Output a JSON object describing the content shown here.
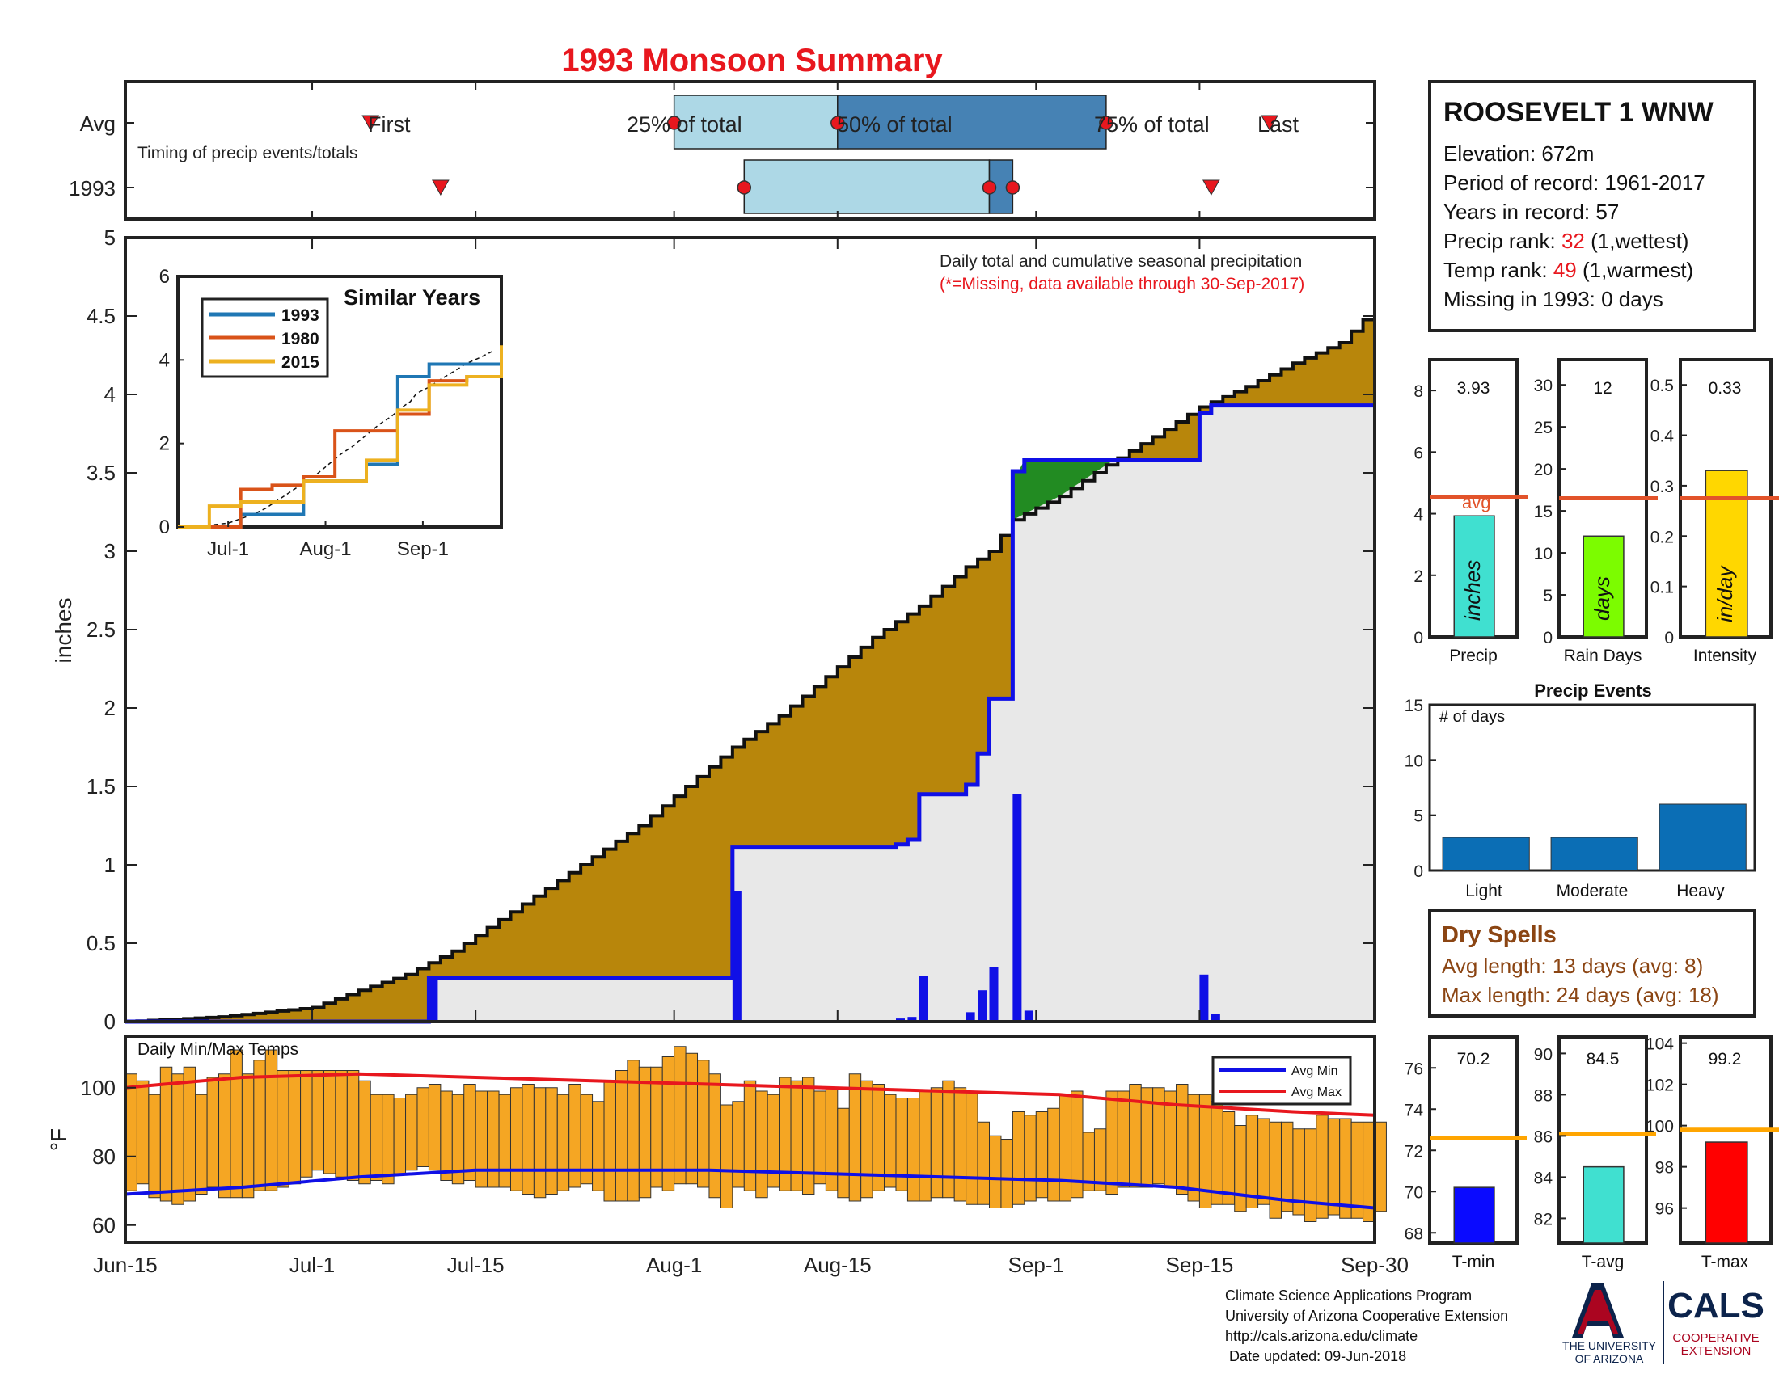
{
  "title": "1993 Monsoon Summary",
  "accent_colors": {
    "title": "#e8171e",
    "cum_fill": "#b8860b",
    "obs_line": "#1010e6",
    "wet_fill": "#228b22",
    "temp_bar": "#f5a623",
    "avg_line": "#e2532a"
  },
  "timing": {
    "row_labels": [
      "Avg",
      "1993"
    ],
    "caption": "Timing of precip events/totals",
    "labels": {
      "first": "First",
      "p25": "25% of total",
      "p50": "50% of total",
      "p75": "75% of total",
      "last": "Last"
    }
  },
  "station": {
    "name": "ROOSEVELT 1 WNW",
    "lines": [
      {
        "text": "Elevation: 672m"
      },
      {
        "text": "Period of record: 1961-2017"
      },
      {
        "text": "Years in record: 57"
      },
      {
        "pre": "Precip rank: ",
        "red": "32",
        "post": " (1,wettest)"
      },
      {
        "pre": "Temp rank: ",
        "red": "49",
        "post": " (1,warmest)"
      },
      {
        "text": "Missing in 1993: 0 days"
      }
    ]
  },
  "main": {
    "ylabel": "inches",
    "note1": "Daily total and cumulative seasonal precipitation",
    "note2": "(*=Missing, data available through 30-Sep-2017)",
    "xticklabels": [
      "Jun-15",
      "Jul-1",
      "Jul-15",
      "Aug-1",
      "Aug-15",
      "Sep-1",
      "Sep-15",
      "Sep-30"
    ]
  },
  "inset": {
    "title": "Similar Years",
    "legend": [
      "1993",
      "1980",
      "2015"
    ],
    "xticklabels": [
      "Jul-1",
      "Aug-1",
      "Sep-1"
    ]
  },
  "temps": {
    "title": "Daily Min/Max Temps",
    "ylabel": "°F",
    "legend": [
      "Avg Min",
      "Avg Max"
    ]
  },
  "mini_bars": [
    {
      "label": "Precip",
      "value_text": "3.93",
      "unit": "inches",
      "avg_label": "avg"
    },
    {
      "label": "Rain Days",
      "value_text": "12",
      "unit": "days"
    },
    {
      "label": "Intensity",
      "value_text": "0.33",
      "unit": "in/day"
    }
  ],
  "events": {
    "title": "Precip Events",
    "ylabel": "# of days"
  },
  "dry_spells": {
    "title": "Dry Spells",
    "avg": "Avg length: 13 days (avg: 8)",
    "max": "Max length: 24 days (avg: 18)"
  },
  "temp_bars": [
    {
      "label": "T-min",
      "value_text": "70.2"
    },
    {
      "label": "T-avg",
      "value_text": "84.5"
    },
    {
      "label": "T-max",
      "value_text": "99.2"
    }
  ],
  "footer": {
    "lines": [
      "Climate Science Applications Program",
      "University of Arizona Cooperative Extension",
      "http://cals.arizona.edu/climate",
      " Date updated: 09-Jun-2018"
    ],
    "logo_ua_1": "THE UNIVERSITY",
    "logo_ua_2": "OF ARIZONA",
    "logo_cals": "CALS",
    "logo_coop_1": "COOPERATIVE",
    "logo_coop_2": "EXTENSION"
  },
  "chart_data": [
    {
      "id": "timing",
      "type": "bar",
      "x_unit": "day of season (0 = Jun-15)",
      "avg": {
        "first": 21,
        "p25": 47,
        "p50": 61,
        "p75": 84,
        "last": 98
      },
      "y1993": {
        "first": 27,
        "p25": 53,
        "p50": 74,
        "p75": 76,
        "last": 93
      }
    },
    {
      "id": "cumulative",
      "type": "area",
      "ylim": [
        0,
        5
      ],
      "xlim": [
        0,
        107
      ],
      "yticks": [
        0,
        0.5,
        1,
        1.5,
        2,
        2.5,
        3,
        3.5,
        4,
        4.5,
        5
      ],
      "xticks": [
        0,
        16,
        30,
        47,
        61,
        78,
        92,
        107
      ],
      "avg_cum": [
        [
          0,
          0.0
        ],
        [
          8,
          0.03
        ],
        [
          16,
          0.09
        ],
        [
          20,
          0.2
        ],
        [
          24,
          0.3
        ],
        [
          28,
          0.45
        ],
        [
          32,
          0.65
        ],
        [
          36,
          0.85
        ],
        [
          40,
          1.05
        ],
        [
          44,
          1.25
        ],
        [
          48,
          1.5
        ],
        [
          52,
          1.75
        ],
        [
          56,
          1.95
        ],
        [
          60,
          2.2
        ],
        [
          64,
          2.45
        ],
        [
          68,
          2.65
        ],
        [
          72,
          2.9
        ],
        [
          74,
          3.0
        ],
        [
          76,
          3.2
        ],
        [
          80,
          3.35
        ],
        [
          84,
          3.55
        ],
        [
          88,
          3.73
        ],
        [
          92,
          3.92
        ],
        [
          96,
          4.05
        ],
        [
          100,
          4.2
        ],
        [
          104,
          4.33
        ],
        [
          107,
          4.55
        ]
      ],
      "obs_cum": [
        [
          0,
          0.0
        ],
        [
          26,
          0.0
        ],
        [
          26,
          0.28
        ],
        [
          52,
          0.28
        ],
        [
          52,
          1.11
        ],
        [
          66,
          1.11
        ],
        [
          66,
          1.13
        ],
        [
          67,
          1.13
        ],
        [
          67,
          1.16
        ],
        [
          68,
          1.16
        ],
        [
          68,
          1.45
        ],
        [
          72,
          1.45
        ],
        [
          72,
          1.51
        ],
        [
          73,
          1.51
        ],
        [
          73,
          1.71
        ],
        [
          74,
          1.71
        ],
        [
          74,
          2.06
        ],
        [
          76,
          2.06
        ],
        [
          76,
          3.51
        ],
        [
          77,
          3.51
        ],
        [
          77,
          3.58
        ],
        [
          92,
          3.58
        ],
        [
          92,
          3.88
        ],
        [
          93,
          3.88
        ],
        [
          93,
          3.93
        ],
        [
          107,
          3.93
        ]
      ],
      "daily": [
        [
          26,
          0.28
        ],
        [
          52,
          0.83
        ],
        [
          66,
          0.02
        ],
        [
          67,
          0.03
        ],
        [
          68,
          0.29
        ],
        [
          72,
          0.06
        ],
        [
          73,
          0.2
        ],
        [
          74,
          0.35
        ],
        [
          76,
          1.45
        ],
        [
          77,
          0.07
        ],
        [
          92,
          0.3
        ],
        [
          93,
          0.05
        ]
      ]
    },
    {
      "id": "similar_years",
      "type": "line",
      "ylim": [
        0,
        6
      ],
      "yticks": [
        0,
        2,
        4,
        6
      ],
      "x": [
        0,
        10,
        20,
        30,
        40,
        50,
        60,
        70,
        80,
        92,
        103
      ],
      "series": [
        {
          "name": "1993",
          "values": [
            0,
            0,
            0.3,
            0.3,
            1.1,
            1.1,
            1.5,
            3.6,
            3.9,
            3.9,
            3.93
          ]
        },
        {
          "name": "1980",
          "values": [
            0,
            0,
            0.9,
            1.0,
            1.2,
            2.3,
            2.3,
            2.7,
            3.5,
            3.6,
            4.1
          ]
        },
        {
          "name": "2015",
          "values": [
            0,
            0.5,
            0.6,
            0.6,
            1.1,
            1.1,
            1.6,
            2.8,
            3.4,
            3.6,
            4.35
          ]
        }
      ]
    },
    {
      "id": "daily_temps",
      "type": "bar",
      "ylim": [
        55,
        115
      ],
      "yticks": [
        60,
        80,
        100
      ],
      "max_temps": [
        104,
        102,
        98,
        106,
        104,
        106,
        98,
        103,
        104,
        111,
        104,
        108,
        111,
        105,
        105,
        105,
        105,
        105,
        105,
        105,
        102,
        98,
        98,
        97,
        98,
        100,
        101,
        99,
        98,
        101,
        99,
        99,
        98,
        100,
        101,
        100,
        100,
        98,
        101,
        98,
        96,
        102,
        105,
        108,
        106,
        106,
        109,
        112,
        110,
        108,
        104,
        95,
        96,
        102,
        99,
        98,
        103,
        102,
        103,
        99,
        100,
        94,
        104,
        102,
        101,
        98,
        97,
        97,
        99,
        100,
        102,
        100,
        99,
        90,
        86,
        85,
        93,
        92,
        93,
        94,
        98,
        99,
        87,
        88,
        99,
        99,
        101,
        100,
        100,
        99,
        101,
        98,
        98,
        96,
        93,
        89,
        92,
        91,
        90,
        90,
        88,
        88,
        92,
        91,
        91,
        90,
        90,
        90
      ],
      "min_temps": [
        70,
        72,
        68,
        67,
        66,
        67,
        69,
        71,
        68,
        68,
        68,
        70,
        70,
        71,
        72,
        74,
        76,
        75,
        74,
        73,
        72,
        73,
        72,
        75,
        76,
        77,
        76,
        73,
        72,
        73,
        71,
        71,
        71,
        70,
        69,
        68,
        69,
        70,
        71,
        72,
        70,
        67,
        67,
        67,
        68,
        71,
        70,
        72,
        72,
        71,
        68,
        65,
        71,
        70,
        68,
        71,
        70,
        70,
        69,
        72,
        70,
        68,
        67,
        68,
        70,
        71,
        70,
        67,
        67,
        68,
        68,
        67,
        66,
        66,
        65,
        65,
        66,
        67,
        68,
        67,
        67,
        68,
        70,
        70,
        69,
        71,
        71,
        71,
        72,
        71,
        69,
        67,
        65,
        66,
        66,
        64,
        65,
        66,
        62,
        64,
        63,
        61,
        62,
        63,
        62,
        62,
        61,
        64
      ],
      "avg_max": [
        [
          0,
          100
        ],
        [
          10,
          103
        ],
        [
          20,
          104
        ],
        [
          30,
          103
        ],
        [
          40,
          102
        ],
        [
          50,
          101
        ],
        [
          60,
          100
        ],
        [
          70,
          99
        ],
        [
          80,
          98
        ],
        [
          90,
          95
        ],
        [
          100,
          93
        ],
        [
          107,
          92
        ]
      ],
      "avg_min": [
        [
          0,
          69
        ],
        [
          10,
          71
        ],
        [
          20,
          74
        ],
        [
          30,
          76
        ],
        [
          40,
          76
        ],
        [
          50,
          76
        ],
        [
          60,
          75
        ],
        [
          70,
          74
        ],
        [
          80,
          73
        ],
        [
          90,
          71
        ],
        [
          100,
          67
        ],
        [
          107,
          65
        ]
      ]
    },
    {
      "id": "precip_bar",
      "type": "bar",
      "categories": [
        "Precip"
      ],
      "values": [
        3.93
      ],
      "avg": 4.55,
      "ylim": [
        0,
        9
      ],
      "yticks": [
        0,
        2,
        4,
        6,
        8
      ]
    },
    {
      "id": "raindays_bar",
      "type": "bar",
      "categories": [
        "Rain Days"
      ],
      "values": [
        12
      ],
      "avg": 16.5,
      "ylim": [
        0,
        33
      ],
      "yticks": [
        0,
        5,
        10,
        15,
        20,
        25,
        30
      ]
    },
    {
      "id": "intensity_bar",
      "type": "bar",
      "categories": [
        "Intensity"
      ],
      "values": [
        0.33
      ],
      "avg": 0.275,
      "ylim": [
        0,
        0.55
      ],
      "yticks": [
        0,
        0.1,
        0.2,
        0.3,
        0.4,
        0.5
      ]
    },
    {
      "id": "precip_events",
      "type": "bar",
      "categories": [
        "Light",
        "Moderate",
        "Heavy"
      ],
      "values": [
        3,
        3,
        6
      ],
      "ylim": [
        0,
        15
      ],
      "yticks": [
        0,
        5,
        10,
        15
      ]
    },
    {
      "id": "tmin_bar",
      "type": "bar",
      "categories": [
        "T-min"
      ],
      "values": [
        70.2
      ],
      "avg": 72.6,
      "ylim": [
        67.5,
        77.5
      ],
      "yticks": [
        68,
        70,
        72,
        74,
        76
      ]
    },
    {
      "id": "tavg_bar",
      "type": "bar",
      "categories": [
        "T-avg"
      ],
      "values": [
        84.5
      ],
      "avg": 86.1,
      "ylim": [
        80.8,
        90.8
      ],
      "yticks": [
        82,
        84,
        86,
        88,
        90
      ]
    },
    {
      "id": "tmax_bar",
      "type": "bar",
      "categories": [
        "T-max"
      ],
      "values": [
        99.2
      ],
      "avg": 99.8,
      "ylim": [
        94.3,
        104.3
      ],
      "yticks": [
        96,
        98,
        100,
        102,
        104
      ]
    }
  ]
}
